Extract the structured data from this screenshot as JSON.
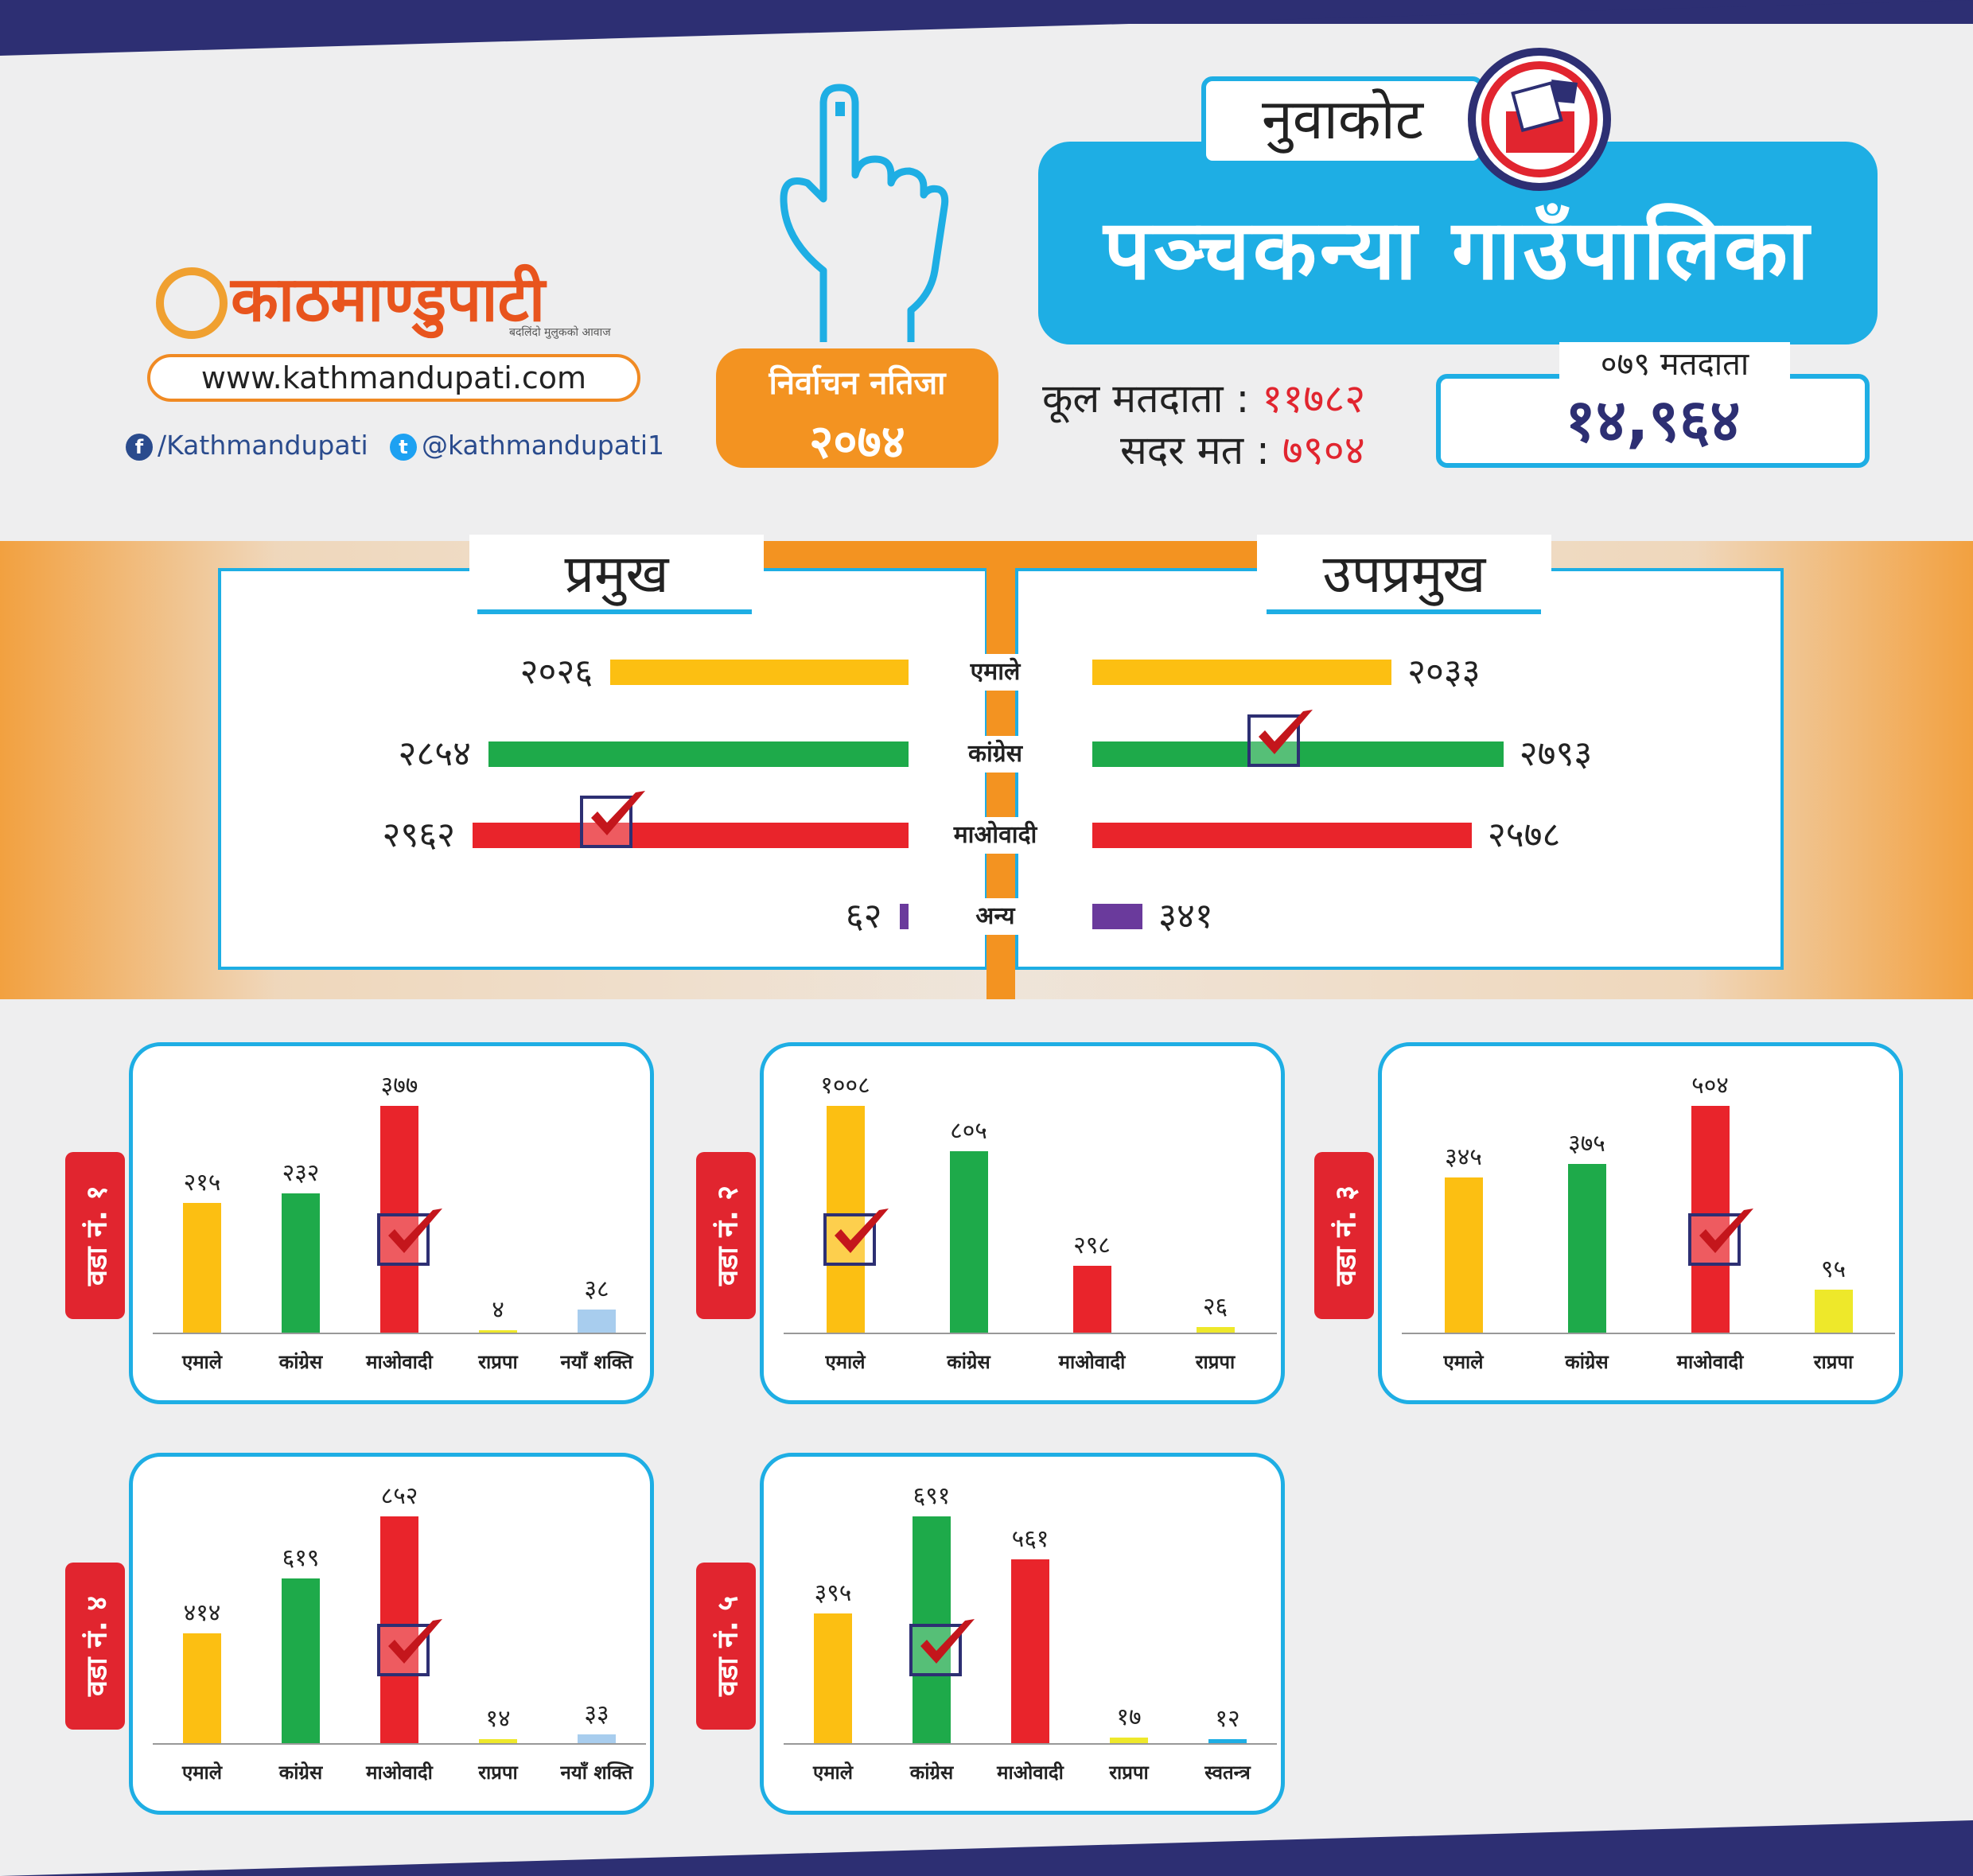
{
  "brand": {
    "logo_text": "काठमाण्डुपाटी",
    "tagline": "बदलिंदो मुलुकको आवाज",
    "url": "www.kathmandupati.com",
    "facebook": "/Kathmandupati",
    "twitter": "@kathmandupati1"
  },
  "election": {
    "label": "निर्वाचन नतिजा",
    "year": "२०७४"
  },
  "header": {
    "district": "नुवाकोट",
    "municipality": "पञ्चकन्या गाउँपालिका"
  },
  "totals": {
    "total_voters_label": "कूल मतदाता",
    "total_voters_value": "११७८२",
    "valid_votes_label": "सदर मत",
    "valid_votes_value": "७९०४",
    "separator": ":",
    "voters_079_label": "०७९ मतदाता",
    "voters_079_value": "१४,९६४"
  },
  "colors": {
    "emale": "#fcbf12",
    "congress": "#1eaa4a",
    "maoist": "#e9242b",
    "other": "#6a3a9c",
    "rpp": "#eee82a",
    "naya_shakti": "#a8cdee",
    "independent": "#1eaee4",
    "accent_blue": "#1eaee4",
    "accent_orange": "#f39321",
    "navy": "#2d2f73"
  },
  "chart_data": [
    {
      "type": "bar",
      "title": "प्रमुख",
      "categories": [
        "एमाले",
        "कांग्रेस",
        "माओवादी",
        "अन्य"
      ],
      "values": [
        2026,
        2854,
        2962,
        62
      ],
      "value_labels": [
        "२०२६",
        "२८५४",
        "२९६२",
        "६२"
      ],
      "winner": "माओवादी"
    },
    {
      "type": "bar",
      "title": "उपप्रमुख",
      "categories": [
        "एमाले",
        "कांग्रेस",
        "माओवादी",
        "अन्य"
      ],
      "values": [
        2033,
        2793,
        2578,
        341
      ],
      "value_labels": [
        "२०३३",
        "२७९३",
        "२५७८",
        "३४१"
      ],
      "winner": "कांग्रेस"
    },
    {
      "type": "bar",
      "title": "वडा नं. १",
      "categories": [
        "एमाले",
        "कांग्रेस",
        "माओवादी",
        "राप्रपा",
        "नयाँ शक्ति"
      ],
      "values": [
        215,
        232,
        377,
        4,
        38
      ],
      "value_labels": [
        "२१५",
        "२३२",
        "३७७",
        "४",
        "३८"
      ],
      "winner": "माओवादी"
    },
    {
      "type": "bar",
      "title": "वडा नं. २",
      "categories": [
        "एमाले",
        "कांग्रेस",
        "माओवादी",
        "राप्रपा"
      ],
      "values": [
        1008,
        805,
        298,
        26
      ],
      "value_labels": [
        "१००८",
        "८०५",
        "२९८",
        "२६"
      ],
      "winner": "एमाले"
    },
    {
      "type": "bar",
      "title": "वडा नं. ३",
      "categories": [
        "एमाले",
        "कांग्रेस",
        "माओवादी",
        "राप्रपा"
      ],
      "values": [
        345,
        375,
        504,
        95
      ],
      "value_labels": [
        "३४५",
        "३७५",
        "५०४",
        "९५"
      ],
      "winner": "माओवादी"
    },
    {
      "type": "bar",
      "title": "वडा नं. ४",
      "categories": [
        "एमाले",
        "कांग्रेस",
        "माओवादी",
        "राप्रपा",
        "नयाँ शक्ति"
      ],
      "values": [
        414,
        619,
        852,
        14,
        33
      ],
      "value_labels": [
        "४१४",
        "६१९",
        "८५२",
        "१४",
        "३३"
      ],
      "winner": "माओवादी"
    },
    {
      "type": "bar",
      "title": "वडा नं. ५",
      "categories": [
        "एमाले",
        "कांग्रेस",
        "माओवादी",
        "राप्रपा",
        "स्वतन्त्र"
      ],
      "values": [
        395,
        691,
        561,
        17,
        12
      ],
      "value_labels": [
        "३९५",
        "६९१",
        "५६१",
        "१७",
        "१२"
      ],
      "winner": "कांग्रेस"
    }
  ]
}
